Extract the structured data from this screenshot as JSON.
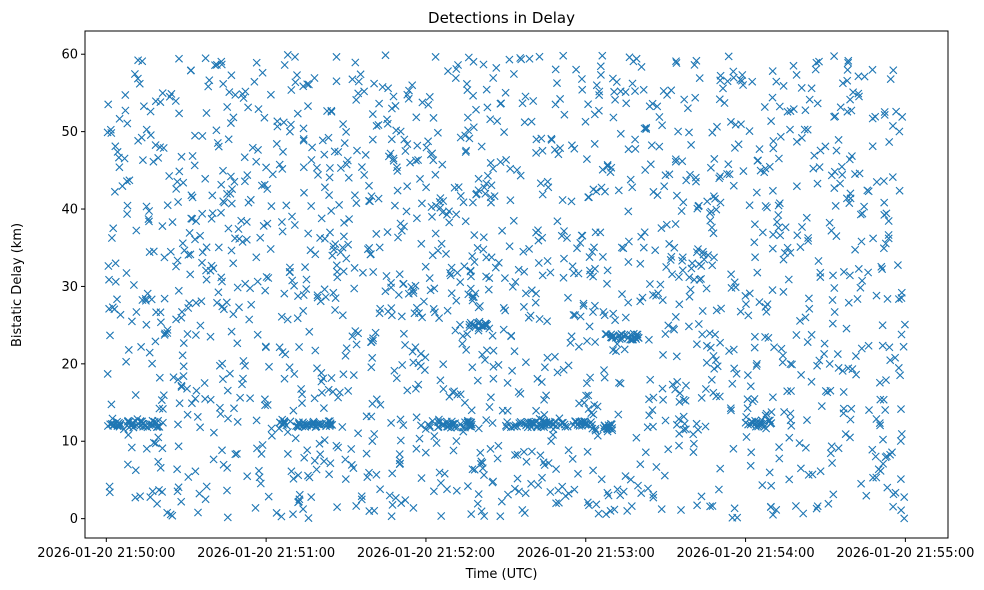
{
  "chart_data": {
    "type": "scatter",
    "title": "Detections in Delay",
    "xlabel": "Time (UTC)",
    "ylabel": "Bistatic Delay (km)",
    "marker": "x",
    "color": "#1f77b4",
    "grid": false,
    "legend": "none",
    "xlim": [
      "2026-01-20 21:49:52",
      "2026-01-20 21:55:16"
    ],
    "ylim": [
      -2.5,
      63
    ],
    "xticks": [
      "2026-01-20 21:50:00",
      "2026-01-20 21:51:00",
      "2026-01-20 21:52:00",
      "2026-01-20 21:53:00",
      "2026-01-20 21:54:00",
      "2026-01-20 21:55:00"
    ],
    "yticks": [
      "0",
      "10",
      "20",
      "30",
      "40",
      "50",
      "60"
    ],
    "x_range": [
      "2026-01-20 21:50:00",
      "2026-01-20 21:55:00"
    ],
    "y_range": [
      0,
      60
    ],
    "band_series": [
      {
        "x_range": [
          "2026-01-20 21:50:00",
          "2026-01-20 21:50:20"
        ],
        "y": 12.2
      },
      {
        "x_range": [
          "2026-01-20 21:51:05",
          "2026-01-20 21:51:25"
        ],
        "y": 12.2
      },
      {
        "x_range": [
          "2026-01-20 21:52:00",
          "2026-01-20 21:52:18"
        ],
        "y": 12.2
      },
      {
        "x_range": [
          "2026-01-20 21:52:30",
          "2026-01-20 21:53:02"
        ],
        "y": 12.2
      },
      {
        "x_range": [
          "2026-01-20 21:53:07",
          "2026-01-20 21:53:20"
        ],
        "y": 23.5
      },
      {
        "x_range": [
          "2026-01-20 21:53:02",
          "2026-01-20 21:53:10"
        ],
        "y": 11.8
      },
      {
        "x_range": [
          "2026-01-20 21:54:00",
          "2026-01-20 21:54:10"
        ],
        "y": 12.3
      },
      {
        "x_range": [
          "2026-01-20 21:52:16",
          "2026-01-20 21:52:24"
        ],
        "y": 25.0
      }
    ],
    "scatter_count": 1700
  }
}
